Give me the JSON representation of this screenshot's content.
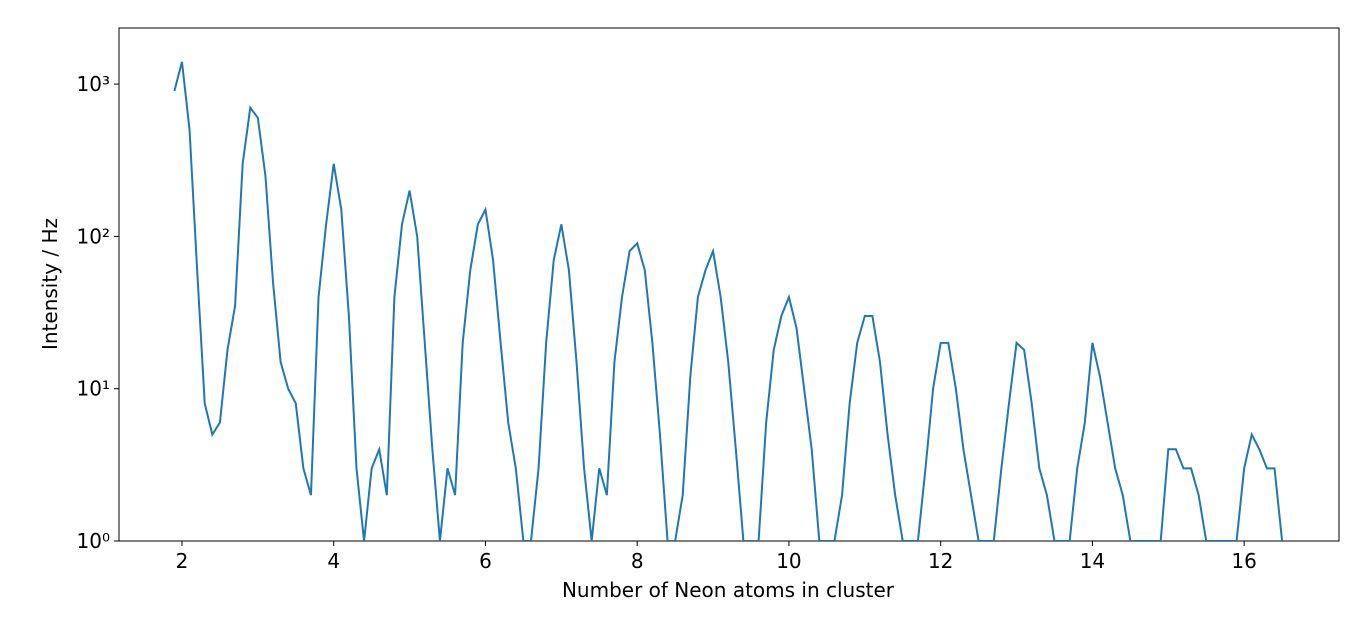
{
  "chart_data": {
    "type": "line",
    "xlabel": "Number of Neon atoms in cluster",
    "ylabel": "Intensity / Hz",
    "yscale": "log",
    "grid": false,
    "xlim": [
      1.17,
      17.25
    ],
    "ylim": [
      1,
      2335
    ],
    "xticks": [
      2,
      4,
      6,
      8,
      10,
      12,
      14,
      16
    ],
    "yticks": [
      {
        "value": 1,
        "label": "10⁰"
      },
      {
        "value": 10,
        "label": "10¹"
      },
      {
        "value": 100,
        "label": "10²"
      },
      {
        "value": 1000,
        "label": "10³"
      }
    ],
    "x": [
      1.9,
      2.0,
      2.1,
      2.2,
      2.3,
      2.4,
      2.5,
      2.6,
      2.7,
      2.8,
      2.9,
      3.0,
      3.1,
      3.2,
      3.3,
      3.4,
      3.5,
      3.6,
      3.7,
      3.8,
      3.9,
      4.0,
      4.1,
      4.2,
      4.3,
      4.4,
      4.5,
      4.6,
      4.7,
      4.8,
      4.9,
      5.0,
      5.1,
      5.2,
      5.3,
      5.4,
      5.5,
      5.6,
      5.7,
      5.8,
      5.9,
      6.0,
      6.1,
      6.2,
      6.3,
      6.4,
      6.5,
      6.6,
      6.7,
      6.8,
      6.9,
      7.0,
      7.1,
      7.2,
      7.3,
      7.4,
      7.5,
      7.6,
      7.7,
      7.8,
      7.9,
      8.0,
      8.1,
      8.2,
      8.3,
      8.4,
      8.5,
      8.6,
      8.7,
      8.8,
      8.9,
      9.0,
      9.1,
      9.2,
      9.3,
      9.4,
      9.5,
      9.6,
      9.7,
      9.8,
      9.9,
      10.0,
      10.1,
      10.2,
      10.3,
      10.4,
      10.5,
      10.6,
      10.7,
      10.8,
      10.9,
      11.0,
      11.1,
      11.2,
      11.3,
      11.4,
      11.5,
      11.6,
      11.7,
      11.8,
      11.9,
      12.0,
      12.1,
      12.2,
      12.3,
      12.4,
      12.5,
      12.6,
      12.7,
      12.8,
      12.9,
      13.0,
      13.1,
      13.2,
      13.3,
      13.4,
      13.5,
      13.6,
      13.7,
      13.8,
      13.9,
      14.0,
      14.1,
      14.2,
      14.3,
      14.4,
      14.5,
      14.6,
      14.7,
      14.8,
      14.9,
      15.0,
      15.1,
      15.2,
      15.3,
      15.4,
      15.5,
      15.6,
      15.7,
      15.8,
      15.9,
      16.0,
      16.1,
      16.2,
      16.3,
      16.4,
      16.5
    ],
    "series": [
      {
        "color": "#1f77b4",
        "values": [
          900,
          1400,
          500,
          60,
          8,
          5,
          6,
          18,
          35,
          300,
          700,
          600,
          250,
          50,
          15,
          10,
          8,
          3,
          2,
          40,
          120,
          300,
          150,
          30,
          3,
          1,
          3,
          4,
          2,
          40,
          120,
          200,
          100,
          20,
          4,
          1,
          3,
          2,
          20,
          60,
          120,
          150,
          70,
          20,
          6,
          3,
          1,
          1,
          3,
          20,
          70,
          120,
          60,
          15,
          3,
          1,
          3,
          2,
          15,
          40,
          80,
          90,
          60,
          20,
          5,
          1,
          1,
          2,
          12,
          40,
          60,
          80,
          40,
          15,
          4,
          1,
          1,
          1,
          6,
          18,
          30,
          40,
          25,
          10,
          4,
          1,
          1,
          1,
          2,
          8,
          20,
          30,
          30,
          15,
          5,
          2,
          1,
          1,
          1,
          3,
          10,
          20,
          20,
          10,
          4,
          2,
          1,
          1,
          1,
          3,
          8,
          20,
          18,
          8,
          3,
          2,
          1,
          1,
          1,
          3,
          6,
          20,
          12,
          6,
          3,
          2,
          1,
          1,
          1,
          1,
          1,
          4,
          4,
          3,
          3,
          2,
          1,
          1,
          1,
          1,
          1,
          3,
          5,
          4,
          3,
          3,
          1
        ]
      }
    ]
  }
}
